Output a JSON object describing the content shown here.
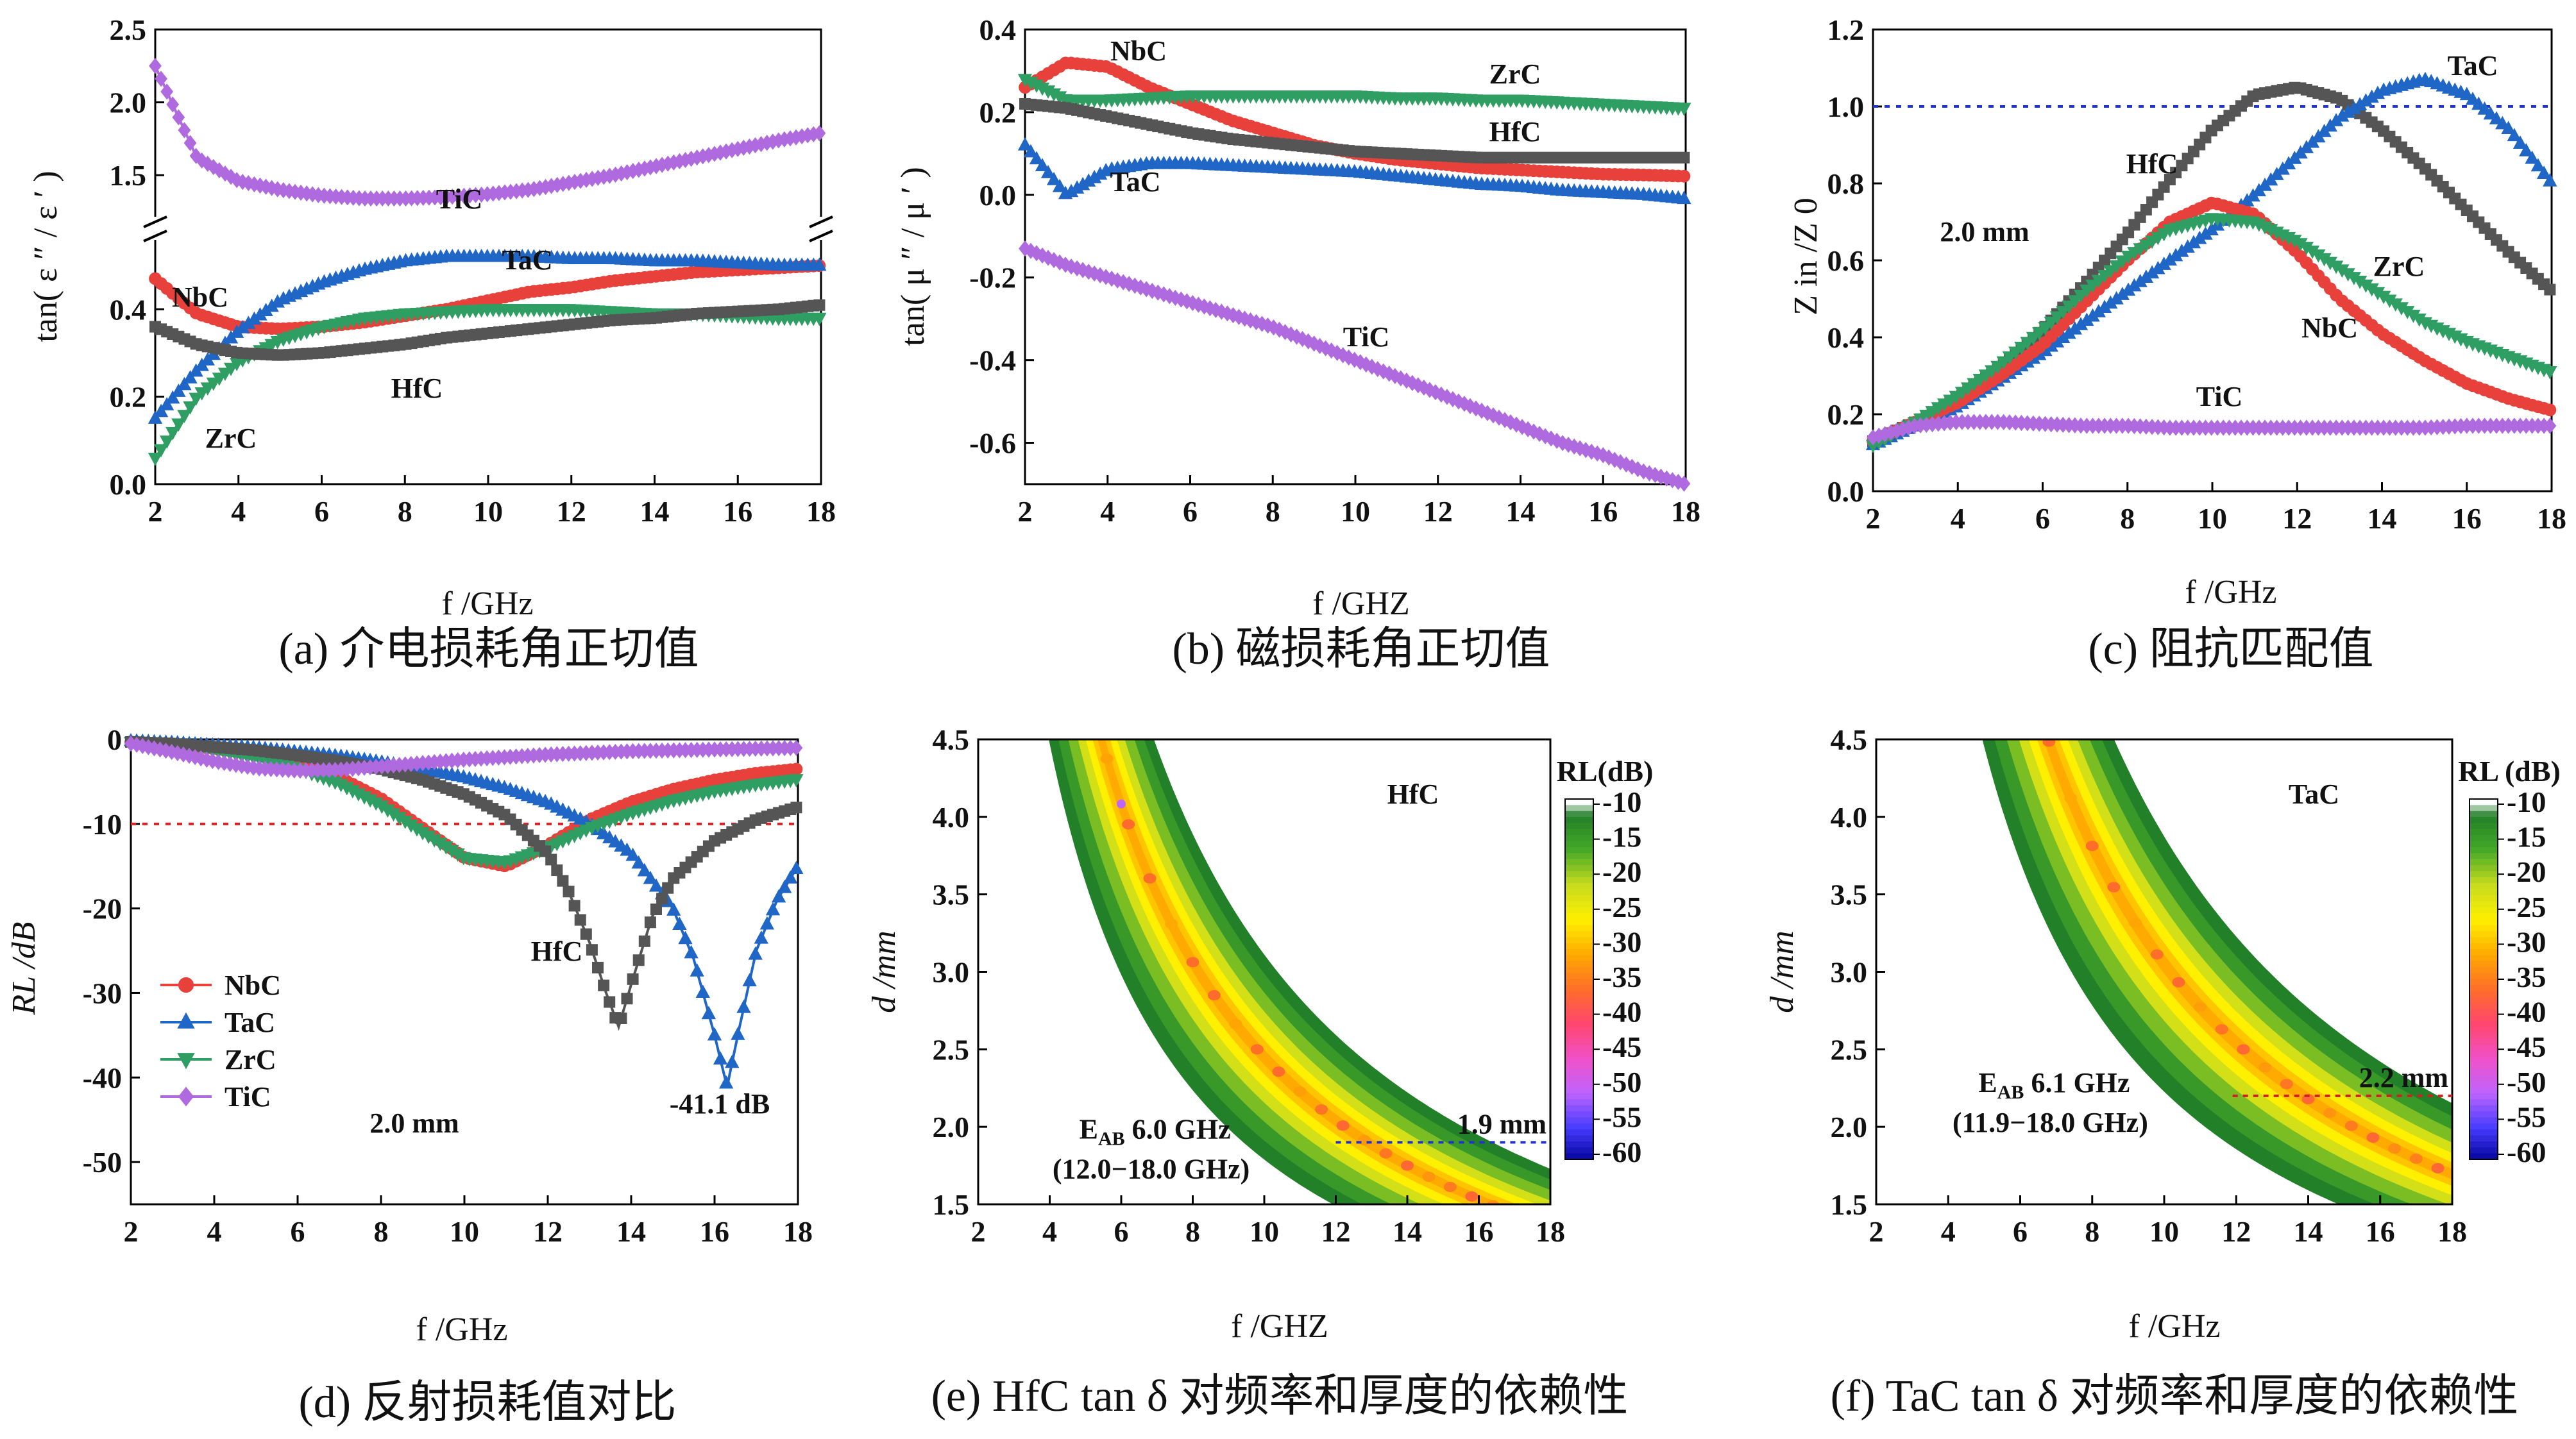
{
  "chart_data": [
    {
      "panel": "a",
      "type": "line",
      "caption": "(a) 介电损耗角正切值",
      "xlabel": "f /GHz",
      "ylabel": "tan( ε ″ / ε ′ )",
      "xlim": [
        2,
        18
      ],
      "xticks": [
        "2",
        "4",
        "6",
        "8",
        "10",
        "12",
        "14",
        "16",
        "18"
      ],
      "ylim": [
        0,
        2.5
      ],
      "yticks": [
        "0.0",
        "0.2",
        "0.4",
        "1.5",
        "2.0",
        "2.5"
      ],
      "axis_break": "between 0.55 and 1.25",
      "x": [
        2,
        3,
        4,
        5,
        6,
        7,
        8,
        9,
        10,
        11,
        12,
        13,
        14,
        15,
        16,
        17,
        18
      ],
      "series": [
        {
          "name": "NbC",
          "color": "#e8413c",
          "marker": "circle",
          "values": [
            0.47,
            0.39,
            0.36,
            0.355,
            0.36,
            0.37,
            0.385,
            0.4,
            0.42,
            0.44,
            0.45,
            0.465,
            0.475,
            0.485,
            0.49,
            0.495,
            0.5
          ]
        },
        {
          "name": "TaC",
          "color": "#1f66c6",
          "marker": "triangle-up",
          "values": [
            0.15,
            0.26,
            0.35,
            0.42,
            0.46,
            0.49,
            0.51,
            0.52,
            0.52,
            0.52,
            0.515,
            0.515,
            0.51,
            0.51,
            0.505,
            0.5,
            0.5
          ]
        },
        {
          "name": "ZrC",
          "color": "#2e9e62",
          "marker": "triangle-down",
          "values": [
            0.06,
            0.2,
            0.28,
            0.33,
            0.36,
            0.38,
            0.39,
            0.395,
            0.4,
            0.4,
            0.4,
            0.395,
            0.39,
            0.39,
            0.385,
            0.38,
            0.38
          ]
        },
        {
          "name": "HfC",
          "color": "#555555",
          "marker": "square",
          "values": [
            0.36,
            0.32,
            0.3,
            0.295,
            0.3,
            0.31,
            0.32,
            0.335,
            0.345,
            0.355,
            0.365,
            0.375,
            0.38,
            0.39,
            0.395,
            0.4,
            0.41
          ]
        },
        {
          "name": "TiC",
          "color": "#b06ae0",
          "marker": "diamond",
          "values": [
            2.25,
            1.62,
            1.46,
            1.4,
            1.36,
            1.34,
            1.34,
            1.35,
            1.37,
            1.4,
            1.45,
            1.5,
            1.56,
            1.62,
            1.68,
            1.74,
            1.79
          ]
        }
      ],
      "labels": [
        "NbC",
        "TaC",
        "ZrC",
        "HfC",
        "TiC"
      ]
    },
    {
      "panel": "b",
      "type": "line",
      "caption": "(b) 磁损耗角正切值",
      "xlabel": "f /GHZ",
      "ylabel": "tan( μ ″ / μ ′ )",
      "xlim": [
        2,
        18
      ],
      "xticks": [
        "2",
        "4",
        "6",
        "8",
        "10",
        "12",
        "14",
        "16",
        "18"
      ],
      "ylim": [
        -0.7,
        0.4
      ],
      "yticks": [
        "-0.6",
        "-0.4",
        "-0.2",
        "0.0",
        "0.2",
        "0.4"
      ],
      "x": [
        2,
        3,
        4,
        5,
        6,
        7,
        8,
        9,
        10,
        11,
        12,
        13,
        14,
        15,
        16,
        17,
        18
      ],
      "series": [
        {
          "name": "NbC",
          "color": "#e8413c",
          "marker": "circle",
          "values": [
            0.26,
            0.32,
            0.31,
            0.26,
            0.22,
            0.18,
            0.15,
            0.12,
            0.1,
            0.085,
            0.075,
            0.065,
            0.06,
            0.055,
            0.05,
            0.048,
            0.045
          ]
        },
        {
          "name": "ZrC",
          "color": "#2e9e62",
          "marker": "triangle-down",
          "values": [
            0.28,
            0.23,
            0.23,
            0.235,
            0.24,
            0.24,
            0.24,
            0.24,
            0.24,
            0.235,
            0.235,
            0.23,
            0.23,
            0.225,
            0.22,
            0.215,
            0.21
          ]
        },
        {
          "name": "HfC",
          "color": "#555555",
          "marker": "square",
          "values": [
            0.22,
            0.21,
            0.19,
            0.17,
            0.15,
            0.135,
            0.125,
            0.115,
            0.105,
            0.1,
            0.095,
            0.09,
            0.09,
            0.09,
            0.09,
            0.09,
            0.09
          ]
        },
        {
          "name": "TaC",
          "color": "#1f66c6",
          "marker": "triangle-up",
          "values": [
            0.12,
            0.0,
            0.06,
            0.075,
            0.075,
            0.07,
            0.065,
            0.06,
            0.055,
            0.045,
            0.035,
            0.025,
            0.02,
            0.01,
            0.005,
            0.0,
            -0.01
          ]
        },
        {
          "name": "TiC",
          "color": "#b06ae0",
          "marker": "diamond",
          "values": [
            -0.13,
            -0.17,
            -0.2,
            -0.23,
            -0.26,
            -0.29,
            -0.32,
            -0.36,
            -0.4,
            -0.44,
            -0.48,
            -0.52,
            -0.56,
            -0.6,
            -0.63,
            -0.67,
            -0.7
          ]
        }
      ],
      "labels": [
        "NbC",
        "ZrC",
        "HfC",
        "TaC",
        "TiC"
      ]
    },
    {
      "panel": "c",
      "type": "line",
      "caption": "(c) 阻抗匹配值",
      "xlabel": "f /GHz",
      "ylabel": "Z in /Z 0",
      "xlim": [
        2,
        18
      ],
      "xticks": [
        "2",
        "4",
        "6",
        "8",
        "10",
        "12",
        "14",
        "16",
        "18"
      ],
      "ylim": [
        0,
        1.2
      ],
      "yticks": [
        "0.0",
        "0.2",
        "0.4",
        "0.6",
        "0.8",
        "1.0",
        "1.2"
      ],
      "reference_line": 1.0,
      "annotation": "2.0 mm",
      "x": [
        2,
        3,
        4,
        5,
        6,
        7,
        8,
        9,
        10,
        11,
        12,
        13,
        14,
        15,
        16,
        17,
        18
      ],
      "series": [
        {
          "name": "HfC",
          "color": "#555555",
          "marker": "square",
          "values": [
            0.13,
            0.18,
            0.24,
            0.32,
            0.42,
            0.54,
            0.67,
            0.81,
            0.94,
            1.03,
            1.05,
            1.02,
            0.94,
            0.84,
            0.73,
            0.62,
            0.52
          ]
        },
        {
          "name": "TaC",
          "color": "#1f66c6",
          "marker": "triangle-up",
          "values": [
            0.12,
            0.17,
            0.22,
            0.29,
            0.36,
            0.44,
            0.52,
            0.6,
            0.68,
            0.77,
            0.87,
            0.97,
            1.04,
            1.07,
            1.03,
            0.94,
            0.8
          ]
        },
        {
          "name": "NbC",
          "color": "#e8413c",
          "marker": "circle",
          "values": [
            0.13,
            0.18,
            0.23,
            0.3,
            0.38,
            0.49,
            0.6,
            0.7,
            0.75,
            0.72,
            0.62,
            0.5,
            0.41,
            0.34,
            0.28,
            0.24,
            0.21
          ]
        },
        {
          "name": "ZrC",
          "color": "#2e9e62",
          "marker": "triangle-down",
          "values": [
            0.12,
            0.18,
            0.25,
            0.33,
            0.42,
            0.52,
            0.61,
            0.68,
            0.71,
            0.7,
            0.65,
            0.58,
            0.51,
            0.44,
            0.39,
            0.35,
            0.31
          ]
        },
        {
          "name": "TiC",
          "color": "#b06ae0",
          "marker": "diamond",
          "values": [
            0.14,
            0.17,
            0.18,
            0.18,
            0.175,
            0.17,
            0.17,
            0.165,
            0.165,
            0.165,
            0.165,
            0.165,
            0.165,
            0.165,
            0.17,
            0.17,
            0.17
          ]
        }
      ],
      "labels": [
        "HfC",
        "TaC",
        "ZrC",
        "NbC",
        "TiC"
      ]
    },
    {
      "panel": "d",
      "type": "line",
      "caption": "(d) 反射损耗值对比",
      "xlabel": "f /GHz",
      "ylabel": "RL /dB",
      "xlim": [
        2,
        18
      ],
      "xticks": [
        "2",
        "4",
        "6",
        "8",
        "10",
        "12",
        "14",
        "16",
        "18"
      ],
      "ylim": [
        -55,
        0
      ],
      "yticks": [
        "0",
        "-10",
        "-20",
        "-30",
        "-40",
        "-50"
      ],
      "reference_line": -10,
      "annotations": [
        "HfC",
        "-41.1 dB",
        "2.0 mm"
      ],
      "legend": [
        "NbC",
        "TaC",
        "ZrC",
        "TiC"
      ],
      "legend_position": "left",
      "series": [
        {
          "name": "NbC",
          "color": "#e8413c",
          "marker": "circle",
          "x": [
            2,
            3,
            4,
            5,
            6,
            7,
            8,
            9,
            10,
            11,
            12,
            13,
            14,
            15,
            16,
            17,
            18
          ],
          "values": [
            -0.3,
            -0.6,
            -1.1,
            -1.8,
            -2.9,
            -4.5,
            -7.0,
            -10.5,
            -14.0,
            -15.0,
            -12.5,
            -9.5,
            -7.4,
            -5.9,
            -4.8,
            -4.0,
            -3.5
          ]
        },
        {
          "name": "TaC",
          "color": "#1f66c6",
          "marker": "triangle-up",
          "x": [
            2,
            3,
            4,
            5,
            6,
            7,
            8,
            9,
            10,
            11,
            12,
            13,
            14,
            15,
            15.5,
            16,
            16.3,
            16.6,
            17,
            17.5,
            18
          ],
          "values": [
            -0.2,
            -0.4,
            -0.7,
            -1.0,
            -1.5,
            -2.0,
            -2.7,
            -3.5,
            -4.5,
            -5.8,
            -7.5,
            -10.0,
            -13.5,
            -20.0,
            -26.0,
            -35.0,
            -41.1,
            -34.0,
            -25.0,
            -19.0,
            -15.0
          ]
        },
        {
          "name": "ZrC",
          "color": "#2e9e62",
          "marker": "triangle-down",
          "x": [
            2,
            3,
            4,
            5,
            6,
            7,
            8,
            9,
            10,
            11,
            12,
            13,
            14,
            15,
            16,
            17,
            18
          ],
          "values": [
            -0.3,
            -0.7,
            -1.3,
            -2.2,
            -3.4,
            -5.2,
            -7.8,
            -11.0,
            -14.0,
            -14.5,
            -12.8,
            -10.5,
            -8.7,
            -7.2,
            -6.1,
            -5.3,
            -4.7
          ]
        },
        {
          "name": "HfC",
          "color": "#555555",
          "marker": "square",
          "x": [
            2,
            3,
            4,
            5,
            6,
            7,
            8,
            9,
            10,
            11,
            12,
            12.5,
            13,
            13.4,
            13.7,
            14,
            14.5,
            15,
            16,
            17,
            18
          ],
          "values": [
            -0.3,
            -0.5,
            -0.9,
            -1.3,
            -1.9,
            -2.6,
            -3.5,
            -4.8,
            -6.5,
            -9.0,
            -13.5,
            -18.0,
            -24.0,
            -30.0,
            -34.0,
            -29.0,
            -21.0,
            -16.5,
            -12.0,
            -9.5,
            -8.0
          ]
        },
        {
          "name": "TiC",
          "color": "#b06ae0",
          "marker": "diamond",
          "x": [
            2,
            3,
            4,
            5,
            6,
            7,
            8,
            9,
            10,
            11,
            12,
            13,
            14,
            15,
            16,
            17,
            18
          ],
          "values": [
            -0.5,
            -1.5,
            -2.6,
            -3.4,
            -3.7,
            -3.6,
            -3.2,
            -2.8,
            -2.4,
            -2.1,
            -1.8,
            -1.6,
            -1.4,
            -1.3,
            -1.2,
            -1.1,
            -1.0
          ]
        }
      ]
    },
    {
      "panel": "e",
      "type": "heatmap",
      "caption": "(e) HfC tan δ 对频率和厚度的依赖性",
      "xlabel": "f /GHZ",
      "ylabel": "d /mm",
      "xlim": [
        2,
        18
      ],
      "xticks": [
        "2",
        "4",
        "6",
        "8",
        "10",
        "12",
        "14",
        "16",
        "18"
      ],
      "ylim": [
        1.5,
        4.5
      ],
      "yticks": [
        "1.5",
        "2.0",
        "2.5",
        "3.0",
        "3.5",
        "4.0",
        "4.5"
      ],
      "title": "HfC",
      "colorbar_label": "RL(dB)",
      "colorbar_ticks": [
        "-10",
        "-15",
        "-20",
        "-25",
        "-30",
        "-35",
        "-40",
        "-45",
        "-50",
        "-55",
        "-60"
      ],
      "band_product_f_times_d": 24.5,
      "marker_thickness_label": "1.9 mm",
      "marker_thickness": 1.9,
      "marker_freq_range": [
        12.0,
        18.0
      ],
      "eab_label": "E",
      "eab_sub": "AB",
      "eab_value": " 6.0 GHz",
      "eab_range": "(12.0−18.0 GHz)",
      "minimum_RL": -50
    },
    {
      "panel": "f",
      "type": "heatmap",
      "caption": "(f) TaC tan δ 对频率和厚度的依赖性",
      "xlabel": "f /GHz",
      "ylabel": "d /mm",
      "xlim": [
        2,
        18
      ],
      "xticks": [
        "2",
        "4",
        "6",
        "8",
        "10",
        "12",
        "14",
        "16",
        "18"
      ],
      "ylim": [
        1.5,
        4.5
      ],
      "yticks": [
        "1.5",
        "2.0",
        "2.5",
        "3.0",
        "3.5",
        "4.0",
        "4.5"
      ],
      "title": "TaC",
      "colorbar_label": "RL (dB)",
      "colorbar_ticks": [
        "-10",
        "-15",
        "-20",
        "-25",
        "-30",
        "-35",
        "-40",
        "-45",
        "-50",
        "-55",
        "-60"
      ],
      "band_product_f_times_d": 30.5,
      "marker_thickness_label": "2.2 mm",
      "marker_thickness": 2.2,
      "marker_freq_range": [
        11.9,
        18.0
      ],
      "eab_label": "E",
      "eab_sub": "AB",
      "eab_value": " 6.1 GHz",
      "eab_range": "(11.9−18.0 GHz)",
      "minimum_RL": -35
    }
  ]
}
